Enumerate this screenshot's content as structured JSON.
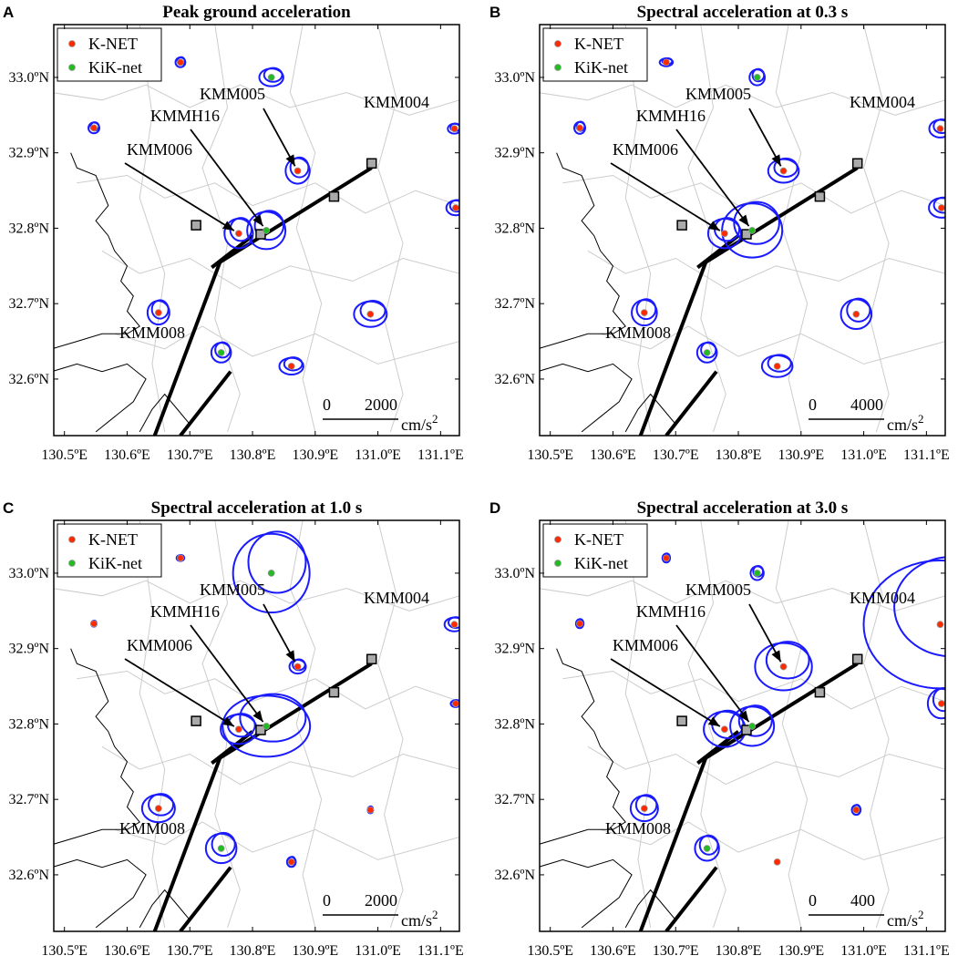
{
  "legend": {
    "knet": {
      "label": "K-NET",
      "color": "#ff2a00"
    },
    "kiknet": {
      "label": "KiK-net",
      "color": "#22bb22"
    }
  },
  "colors": {
    "contour": "#1a1aff",
    "fault": "#000000",
    "coast": "#000000",
    "border": "#cccccc",
    "grid_site": "#aaaaaa"
  },
  "axes": {
    "x_ticks": [
      "130.5ºE",
      "130.6ºE",
      "130.7ºE",
      "130.8ºE",
      "130.9ºE",
      "131.0ºE",
      "131.1ºE"
    ],
    "y_ticks": [
      "33.0ºN",
      "32.9ºN",
      "32.8ºN",
      "32.7ºN",
      "32.6ºN"
    ],
    "x_range": [
      130.47,
      131.13
    ],
    "y_range": [
      32.52,
      33.07
    ]
  },
  "stations": [
    {
      "id": "KMM006",
      "lon": 130.778,
      "lat": 32.793,
      "network": "knet",
      "label": "KMM006"
    },
    {
      "id": "KMMH16",
      "lon": 130.822,
      "lat": 32.797,
      "network": "kiknet",
      "label": "KMMH16"
    },
    {
      "id": "KMM005",
      "lon": 130.872,
      "lat": 32.876,
      "network": "knet",
      "label": "KMM005"
    },
    {
      "id": "KMM004",
      "lon": 131.122,
      "lat": 32.932,
      "network": "knet",
      "label": "KMM004"
    },
    {
      "id": "KMM008",
      "lon": 130.65,
      "lat": 32.688,
      "network": "knet",
      "label": "KMM008"
    },
    {
      "id": "s1",
      "lon": 130.547,
      "lat": 32.933,
      "network": "knet",
      "label": ""
    },
    {
      "id": "s2",
      "lon": 130.685,
      "lat": 33.02,
      "network": "knet",
      "label": ""
    },
    {
      "id": "s3",
      "lon": 130.83,
      "lat": 33.0,
      "network": "kiknet",
      "label": ""
    },
    {
      "id": "s4",
      "lon": 131.124,
      "lat": 32.827,
      "network": "knet",
      "label": ""
    },
    {
      "id": "s5",
      "lon": 130.988,
      "lat": 32.686,
      "network": "knet",
      "label": ""
    },
    {
      "id": "s6",
      "lon": 130.862,
      "lat": 32.617,
      "network": "knet",
      "label": ""
    },
    {
      "id": "s7",
      "lon": 130.75,
      "lat": 32.635,
      "network": "kiknet",
      "label": ""
    }
  ],
  "gray_sites": [
    {
      "lon": 130.71,
      "lat": 32.804
    },
    {
      "lon": 130.813,
      "lat": 32.792
    },
    {
      "lon": 130.93,
      "lat": 32.842
    },
    {
      "lon": 130.99,
      "lat": 32.886
    }
  ],
  "panels": [
    {
      "label": "A",
      "title": "Peak ground acceleration",
      "scale": {
        "value": "2000",
        "unit": "cm/s",
        "sup": "2"
      },
      "amplitudes": {
        "KMM006": [
          0.26,
          0.3
        ],
        "KMMH16": [
          0.35,
          0.38
        ],
        "KMM005": [
          0.22,
          0.26
        ],
        "KMM004": [
          0.12,
          0.1
        ],
        "KMM008": [
          0.2,
          0.24
        ],
        "s1": [
          0.1,
          0.11
        ],
        "s2": [
          0.09,
          0.1
        ],
        "s3": [
          0.22,
          0.18
        ],
        "s4": [
          0.17,
          0.15
        ],
        "s5": [
          0.3,
          0.26
        ],
        "s6": [
          0.22,
          0.17
        ],
        "s7": [
          0.18,
          0.2
        ]
      }
    },
    {
      "label": "B",
      "title": "Spectral acceleration at 0.3 s",
      "scale": {
        "value": "4000",
        "unit": "cm/s",
        "sup": "2"
      },
      "amplitudes": {
        "KMM006": [
          0.3,
          0.3
        ],
        "KMMH16": [
          0.55,
          0.55
        ],
        "KMM005": [
          0.28,
          0.24
        ],
        "KMM004": [
          0.2,
          0.18
        ],
        "KMM008": [
          0.23,
          0.26
        ],
        "s1": [
          0.1,
          0.12
        ],
        "s2": [
          0.12,
          0.08
        ],
        "s3": [
          0.14,
          0.16
        ],
        "s4": [
          0.23,
          0.2
        ],
        "s5": [
          0.28,
          0.3
        ],
        "s6": [
          0.28,
          0.22
        ],
        "s7": [
          0.18,
          0.2
        ]
      }
    },
    {
      "label": "C",
      "title": "Spectral acceleration at 1.0 s",
      "scale": {
        "value": "2000",
        "unit": "cm/s",
        "sup": "2"
      },
      "amplitudes": {
        "KMM006": [
          0.33,
          0.3
        ],
        "KMMH16": [
          0.8,
          0.62
        ],
        "KMM005": [
          0.15,
          0.14
        ],
        "KMM004": [
          0.18,
          0.14
        ],
        "KMM008": [
          0.3,
          0.28
        ],
        "s1": [
          0.05,
          0.06
        ],
        "s2": [
          0.07,
          0.06
        ],
        "s3": [
          0.7,
          0.8
        ],
        "s4": [
          0.09,
          0.07
        ],
        "s5": [
          0.05,
          0.07
        ],
        "s6": [
          0.08,
          0.1
        ],
        "s7": [
          0.28,
          0.3
        ]
      }
    },
    {
      "label": "D",
      "title": "Spectral acceleration at 3.0 s",
      "scale": {
        "value": "400",
        "unit": "cm/s",
        "sup": "2"
      },
      "amplitudes": {
        "KMM006": [
          0.38,
          0.36
        ],
        "KMMH16": [
          0.4,
          0.4
        ],
        "KMM005": [
          0.52,
          0.48
        ],
        "KMM004": [
          1.4,
          1.3
        ],
        "KMM008": [
          0.25,
          0.26
        ],
        "s1": [
          0.07,
          0.09
        ],
        "s2": [
          0.07,
          0.09
        ],
        "s3": [
          0.12,
          0.14
        ],
        "s4": [
          0.25,
          0.3
        ],
        "s5": [
          0.08,
          0.1
        ],
        "s6": [
          0.04,
          0.04
        ],
        "s7": [
          0.22,
          0.25
        ]
      }
    }
  ]
}
